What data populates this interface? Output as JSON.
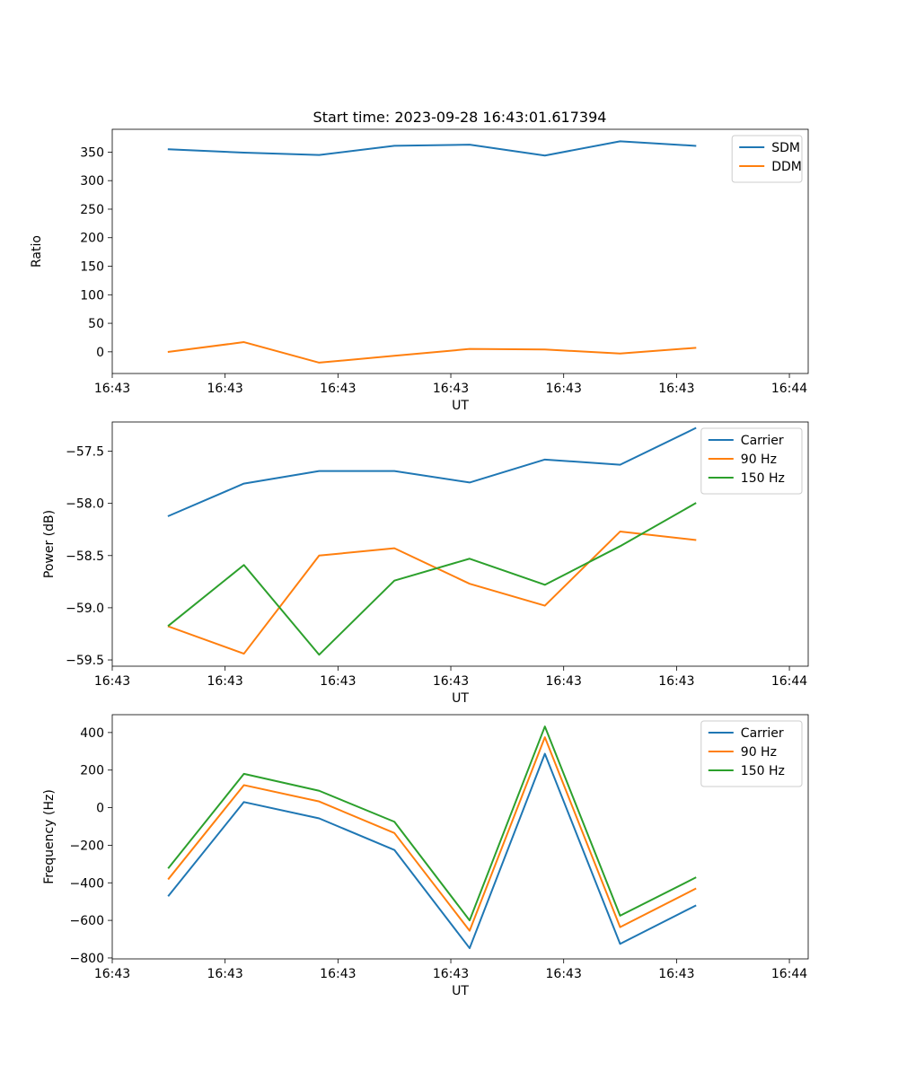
{
  "chart_data": [
    {
      "type": "line",
      "title": "Start time: 2023-09-28 16:43:01.617394",
      "xlabel": "UT",
      "ylabel": "Ratio",
      "x": [
        1,
        2,
        3,
        4,
        5,
        6,
        7,
        8
      ],
      "xlim": [
        0.25,
        9.5
      ],
      "xticks": [
        0.25,
        1.75,
        3.25,
        4.75,
        6.25,
        7.75,
        9.25
      ],
      "xtick_labels": [
        "16:43",
        "16:43",
        "16:43",
        "16:43",
        "16:43",
        "16:43",
        "16:44"
      ],
      "ylim": [
        -38,
        390
      ],
      "yticks": [
        0,
        50,
        100,
        150,
        200,
        250,
        300,
        350
      ],
      "ytick_labels": [
        "0",
        "50",
        "100",
        "150",
        "200",
        "250",
        "300",
        "350"
      ],
      "legend": "top-right",
      "series": [
        {
          "name": "SDM",
          "color": "#1f77b4",
          "values": [
            355,
            349,
            345,
            361,
            363,
            344,
            369,
            361
          ]
        },
        {
          "name": "DDM",
          "color": "#ff7f0e",
          "values": [
            0,
            17,
            -19,
            -7,
            5,
            4,
            -3,
            7
          ]
        }
      ]
    },
    {
      "type": "line",
      "title": "",
      "xlabel": "UT",
      "ylabel": "Power (dB)",
      "x": [
        1,
        2,
        3,
        4,
        5,
        6,
        7,
        8
      ],
      "xlim": [
        0.25,
        9.5
      ],
      "xticks": [
        0.25,
        1.75,
        3.25,
        4.75,
        6.25,
        7.75,
        9.25
      ],
      "xtick_labels": [
        "16:43",
        "16:43",
        "16:43",
        "16:43",
        "16:43",
        "16:43",
        "16:44"
      ],
      "ylim": [
        -59.56,
        -57.22
      ],
      "yticks": [
        -59.5,
        -59.0,
        -58.5,
        -58.0,
        -57.5
      ],
      "ytick_labels": [
        "−59.5",
        "−59.0",
        "−58.5",
        "−58.0",
        "−57.5"
      ],
      "legend": "top-right",
      "series": [
        {
          "name": "Carrier",
          "color": "#1f77b4",
          "values": [
            -58.12,
            -57.81,
            -57.69,
            -57.69,
            -57.8,
            -57.58,
            -57.63,
            -57.28
          ]
        },
        {
          "name": "90 Hz",
          "color": "#ff7f0e",
          "values": [
            -59.18,
            -59.44,
            -58.5,
            -58.43,
            -58.77,
            -58.98,
            -58.27,
            -58.35
          ]
        },
        {
          "name": "150 Hz",
          "color": "#2ca02c",
          "values": [
            -59.17,
            -58.59,
            -59.45,
            -58.74,
            -58.53,
            -58.78,
            -58.41,
            -58.0
          ]
        }
      ]
    },
    {
      "type": "line",
      "title": "",
      "xlabel": "UT",
      "ylabel": "Frequency (Hz)",
      "x": [
        1,
        2,
        3,
        4,
        5,
        6,
        7,
        8
      ],
      "xlim": [
        0.25,
        9.5
      ],
      "xticks": [
        0.25,
        1.75,
        3.25,
        4.75,
        6.25,
        7.75,
        9.25
      ],
      "xtick_labels": [
        "16:43",
        "16:43",
        "16:43",
        "16:43",
        "16:43",
        "16:43",
        "16:44"
      ],
      "ylim": [
        -805,
        495
      ],
      "yticks": [
        -800,
        -600,
        -400,
        -200,
        0,
        200,
        400
      ],
      "ytick_labels": [
        "−800",
        "−600",
        "−400",
        "−200",
        "0",
        "200",
        "400"
      ],
      "legend": "top-right",
      "series": [
        {
          "name": "Carrier",
          "color": "#1f77b4",
          "values": [
            -468,
            30,
            -57,
            -225,
            -748,
            287,
            -725,
            -522
          ]
        },
        {
          "name": "90 Hz",
          "color": "#ff7f0e",
          "values": [
            -378,
            120,
            33,
            -135,
            -655,
            375,
            -636,
            -432
          ]
        },
        {
          "name": "150 Hz",
          "color": "#2ca02c",
          "values": [
            -320,
            180,
            90,
            -75,
            -600,
            432,
            -575,
            -373
          ]
        }
      ]
    }
  ]
}
